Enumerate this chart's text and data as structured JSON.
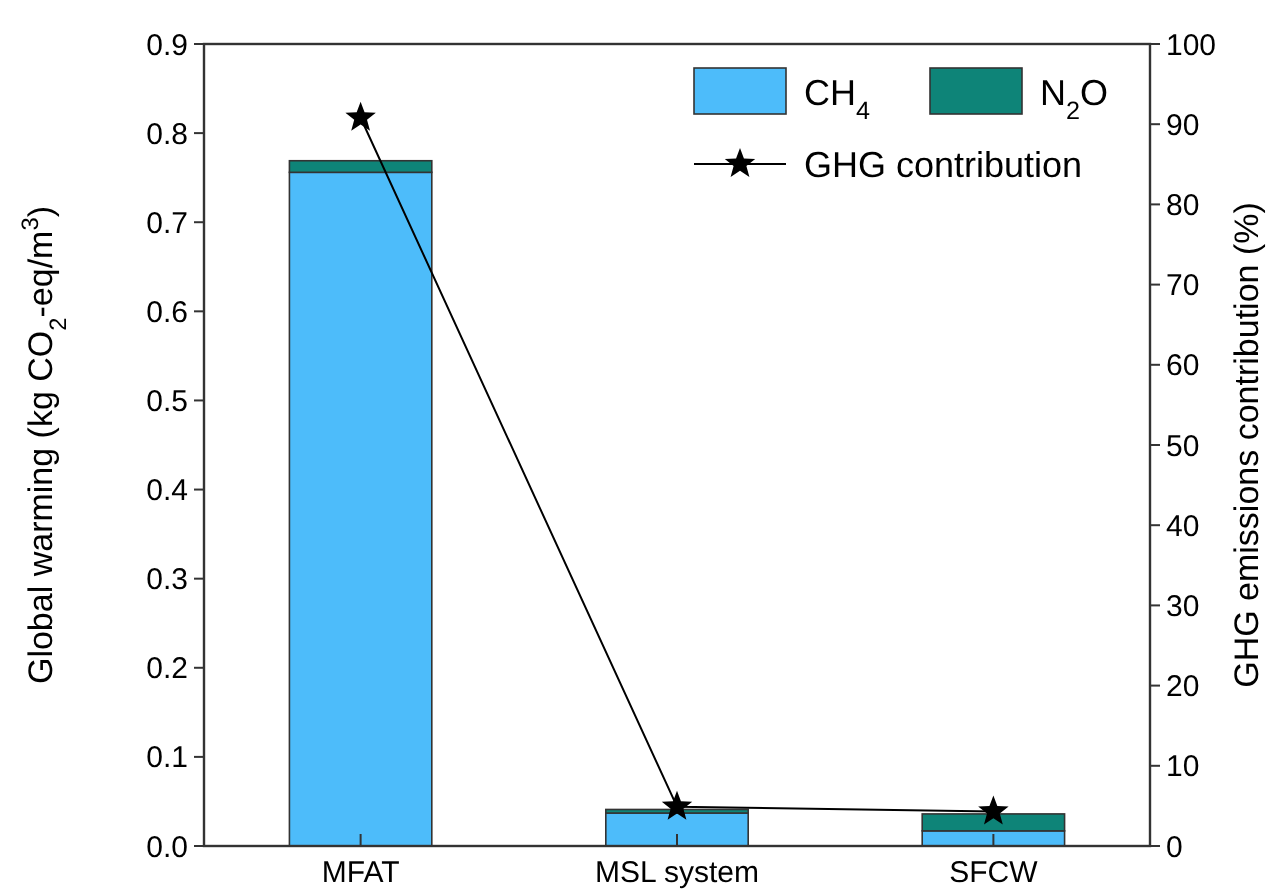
{
  "chart_data": {
    "type": "bar",
    "stacked": true,
    "categories": [
      "MFAT",
      "MSL system",
      "SFCW"
    ],
    "series": [
      {
        "name": "CH$_{4}$",
        "color": "#4dbcfa",
        "values": [
          0.756,
          0.037,
          0.017
        ]
      },
      {
        "name": "N$_{2}$O",
        "color": "#0e8478",
        "values": [
          0.013,
          0.004,
          0.019
        ]
      },
      {
        "name": "GHG contribution",
        "type": "line",
        "axis": "y2",
        "color": "#000000",
        "marker": "star",
        "values": [
          90.8,
          4.9,
          4.3
        ]
      }
    ],
    "ylabel": "Global warming (kg CO$_{2}$-eq/m$^{3}$)",
    "y2label": "GHG emissions contribution (%)",
    "ylim": [
      0,
      0.9
    ],
    "yticks": [
      {
        "value": 0,
        "label": "0.0"
      },
      0.1,
      0.2,
      0.3,
      0.4,
      0.5,
      0.6,
      0.7,
      0.8,
      0.9
    ],
    "y2lim": [
      0,
      100
    ],
    "y2ticks": [
      0,
      10,
      20,
      30,
      40,
      50,
      60,
      70,
      80,
      90,
      100
    ],
    "legend": "top right",
    "grid": false
  }
}
